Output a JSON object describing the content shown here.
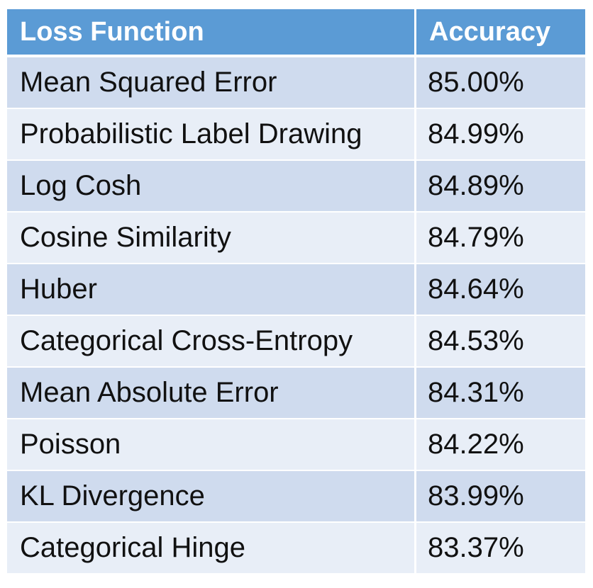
{
  "chart_data": {
    "type": "table",
    "columns": [
      "Loss Function",
      "Accuracy"
    ],
    "rows": [
      [
        "Mean Squared Error",
        "85.00%"
      ],
      [
        "Probabilistic Label Drawing",
        "84.99%"
      ],
      [
        "Log Cosh",
        "84.89%"
      ],
      [
        "Cosine Similarity",
        "84.79%"
      ],
      [
        "Huber",
        "84.64%"
      ],
      [
        "Categorical Cross-Entropy",
        "84.53%"
      ],
      [
        "Mean Absolute Error",
        "84.31%"
      ],
      [
        "Poisson",
        "84.22%"
      ],
      [
        "KL Divergence",
        "83.99%"
      ],
      [
        "Categorical Hinge",
        "83.37%"
      ]
    ]
  },
  "colors": {
    "header_bg": "#5b9bd5",
    "row_odd": "#cfdbee",
    "row_even": "#e8eef7"
  }
}
